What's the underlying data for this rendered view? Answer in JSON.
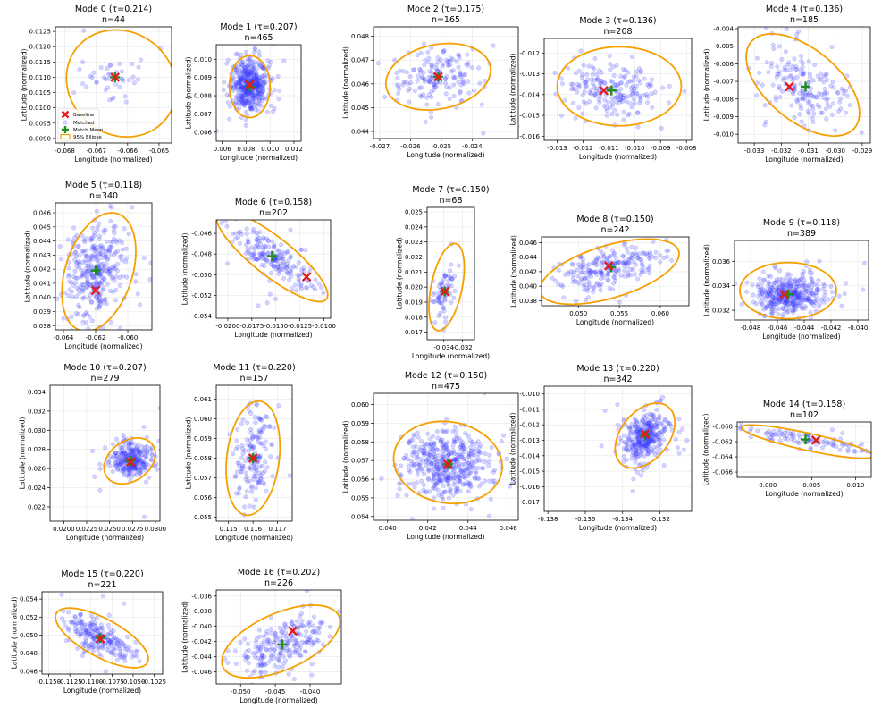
{
  "chart_data": [
    {
      "type": "scatter",
      "title": "Mode 0 (τ=0.214)",
      "subtitle": "n=44",
      "xlabel": "Longitude (normalized)",
      "ylabel": "Latitude (normalized)",
      "xlim": [
        -0.0683,
        -0.0646
      ],
      "ylim": [
        0.00885,
        0.01265
      ],
      "xticks": [
        "-0.068",
        "-0.067",
        "-0.066",
        "-0.065"
      ],
      "xtick_vals": [
        -0.068,
        -0.067,
        -0.066,
        -0.065
      ],
      "yticks": [
        "0.0090",
        "0.0095",
        "0.0100",
        "0.0105",
        "0.0110",
        "0.0115",
        "0.0120",
        "0.0125"
      ],
      "ytick_vals": [
        0.009,
        0.0095,
        0.01,
        0.0105,
        0.011,
        0.0115,
        0.012,
        0.0125
      ],
      "n": 44,
      "spread": [
        0.0005,
        0.0004
      ],
      "corr": 0,
      "baseline": [
        -0.0664,
        0.011
      ],
      "match_mean": [
        -0.0664,
        0.011
      ],
      "ellipse": {
        "center": [
          -0.0662,
          0.0108
        ],
        "semi_x": 0.00175,
        "semi_y": 0.00175,
        "corr": -0.1
      },
      "legend": {
        "placement": "lower-left",
        "entries": [
          "Baseline",
          "Matched",
          "Match Mean",
          "95% Ellipse"
        ]
      }
    },
    {
      "type": "scatter",
      "title": "Mode 1 (τ=0.207)",
      "subtitle": "n=465",
      "xlabel": "Longitude (normalized)",
      "ylabel": "Latitude (normalized)",
      "xlim": [
        0.0055,
        0.0126
      ],
      "ylim": [
        0.0055,
        0.0108
      ],
      "xticks": [
        "0.006",
        "0.008",
        "0.010",
        "0.012"
      ],
      "xtick_vals": [
        0.006,
        0.008,
        0.01,
        0.012
      ],
      "yticks": [
        "0.006",
        "0.007",
        "0.008",
        "0.009",
        "0.010"
      ],
      "ytick_vals": [
        0.006,
        0.007,
        0.008,
        0.009,
        0.01
      ],
      "n": 465,
      "spread": [
        0.00075,
        0.0007
      ],
      "corr": 0,
      "baseline": [
        0.0083,
        0.0086
      ],
      "match_mean": [
        0.0083,
        0.0085
      ],
      "ellipse": {
        "center": [
          0.0083,
          0.0085
        ],
        "semi_x": 0.0017,
        "semi_y": 0.0017,
        "corr": 0
      }
    },
    {
      "type": "scatter",
      "title": "Mode 2 (τ=0.175)",
      "subtitle": "n=165",
      "xlabel": "Longitude (normalized)",
      "ylabel": "Latitude (normalized)",
      "xlim": [
        -0.0272,
        -0.0225
      ],
      "ylim": [
        0.0437,
        0.0484
      ],
      "xticks": [
        "-0.027",
        "-0.026",
        "-0.025",
        "-0.024"
      ],
      "xtick_vals": [
        -0.027,
        -0.026,
        -0.025,
        -0.024
      ],
      "yticks": [
        "0.044",
        "0.045",
        "0.046",
        "0.047",
        "0.048"
      ],
      "ytick_vals": [
        0.044,
        0.045,
        0.046,
        0.047,
        0.048
      ],
      "n": 165,
      "spread": [
        0.0007,
        0.0006
      ],
      "corr": 0.1,
      "baseline": [
        -0.0251,
        0.0463
      ],
      "match_mean": [
        -0.0251,
        0.0463
      ],
      "ellipse": {
        "center": [
          -0.0251,
          0.0463
        ],
        "semi_x": 0.0017,
        "semi_y": 0.0014,
        "corr": 0.2
      }
    },
    {
      "type": "scatter",
      "title": "Mode 3 (τ=0.136)",
      "subtitle": "n=208",
      "xlabel": "Longitude (normalized)",
      "ylabel": "Latitude (normalized)",
      "xlim": [
        -0.0135,
        -0.0078
      ],
      "ylim": [
        -0.0162,
        -0.0113
      ],
      "xticks": [
        "-0.013",
        "-0.012",
        "-0.011",
        "-0.010",
        "-0.009",
        "-0.008"
      ],
      "xtick_vals": [
        -0.013,
        -0.012,
        -0.011,
        -0.01,
        -0.009,
        -0.008
      ],
      "yticks": [
        "-0.016",
        "-0.015",
        "-0.014",
        "-0.013",
        "-0.012"
      ],
      "ytick_vals": [
        -0.016,
        -0.015,
        -0.014,
        -0.013,
        -0.012
      ],
      "n": 208,
      "spread": [
        0.0009,
        0.0007
      ],
      "corr": 0,
      "baseline": [
        -0.0112,
        -0.0138
      ],
      "match_mean": [
        -0.0109,
        -0.0138
      ],
      "ellipse": {
        "center": [
          -0.0106,
          -0.0136
        ],
        "semi_x": 0.0024,
        "semi_y": 0.0019,
        "corr": 0
      }
    },
    {
      "type": "scatter",
      "title": "Mode 4 (τ=0.136)",
      "subtitle": "n=185",
      "xlabel": "Longitude (normalized)",
      "ylabel": "Latitude (normalized)",
      "xlim": [
        -0.0336,
        -0.0287
      ],
      "ylim": [
        -0.0105,
        -0.0039
      ],
      "xticks": [
        "-0.033",
        "-0.032",
        "-0.031",
        "-0.030",
        "-0.029"
      ],
      "xtick_vals": [
        -0.033,
        -0.032,
        -0.031,
        -0.03,
        -0.029
      ],
      "yticks": [
        "-0.010",
        "-0.009",
        "-0.008",
        "-0.007",
        "-0.006",
        "-0.005",
        "-0.004"
      ],
      "ytick_vals": [
        -0.01,
        -0.009,
        -0.008,
        -0.007,
        -0.006,
        -0.005,
        -0.004
      ],
      "n": 185,
      "spread": [
        0.0008,
        0.0011
      ],
      "corr": -0.55,
      "baseline": [
        -0.0317,
        -0.0073
      ],
      "match_mean": [
        -0.0311,
        -0.0073
      ],
      "ellipse": {
        "center": [
          -0.0312,
          -0.0072
        ],
        "semi_x": 0.0021,
        "semi_y": 0.0029,
        "corr": -0.55
      }
    },
    {
      "type": "scatter",
      "title": "Mode 5 (τ=0.118)",
      "subtitle": "n=340",
      "xlabel": "Longitude (normalized)",
      "ylabel": "Latitude (normalized)",
      "xlim": [
        -0.0645,
        -0.0585
      ],
      "ylim": [
        0.0377,
        0.0467
      ],
      "xticks": [
        "-0.064",
        "-0.062",
        "-0.060"
      ],
      "xtick_vals": [
        -0.064,
        -0.062,
        -0.06
      ],
      "yticks": [
        "0.038",
        "0.039",
        "0.040",
        "0.041",
        "0.042",
        "0.043",
        "0.044",
        "0.045",
        "0.046"
      ],
      "ytick_vals": [
        0.038,
        0.039,
        0.04,
        0.041,
        0.042,
        0.043,
        0.044,
        0.045,
        0.046
      ],
      "n": 340,
      "spread": [
        0.0009,
        0.0017
      ],
      "corr": 0.3,
      "baseline": [
        -0.062,
        0.0405
      ],
      "match_mean": [
        -0.062,
        0.0419
      ],
      "ellipse": {
        "center": [
          -0.0618,
          0.0418
        ],
        "semi_x": 0.0023,
        "semi_y": 0.0042,
        "corr": 0.35
      }
    },
    {
      "type": "scatter",
      "title": "Mode 6 (τ=0.158)",
      "subtitle": "n=202",
      "xlabel": "Longitude (normalized)",
      "ylabel": "Latitude (normalized)",
      "xlim": [
        -0.0212,
        -0.0093
      ],
      "ylim": [
        -0.0542,
        -0.0447
      ],
      "xticks": [
        "-0.0200",
        "-0.0175",
        "-0.0150",
        "-0.0125",
        "-0.0100"
      ],
      "xtick_vals": [
        -0.02,
        -0.0175,
        -0.015,
        -0.0125,
        -0.01
      ],
      "yticks": [
        "-0.054",
        "-0.052",
        "-0.050",
        "-0.048",
        "-0.046"
      ],
      "ytick_vals": [
        -0.054,
        -0.052,
        -0.05,
        -0.048,
        -0.046
      ],
      "n": 202,
      "spread": [
        0.0022,
        0.0016
      ],
      "corr": -0.8,
      "baseline": [
        -0.0118,
        -0.0502
      ],
      "match_mean": [
        -0.0154,
        -0.0482
      ],
      "ellipse": {
        "center": [
          -0.0154,
          -0.0482
        ],
        "semi_x": 0.0058,
        "semi_y": 0.0044,
        "corr": -0.85
      }
    },
    {
      "type": "scatter",
      "title": "Mode 7 (τ=0.150)",
      "subtitle": "n=68",
      "xlabel": "Longitude (normalized)",
      "ylabel": "Latitude (normalized)",
      "xlim": [
        -0.0358,
        -0.0307
      ],
      "ylim": [
        0.0165,
        0.0253
      ],
      "xticks": [
        "-0.034",
        "-0.032"
      ],
      "xtick_vals": [
        -0.034,
        -0.032
      ],
      "yticks": [
        "0.017",
        "0.018",
        "0.019",
        "0.020",
        "0.021",
        "0.022",
        "0.023",
        "0.024",
        "0.025"
      ],
      "ytick_vals": [
        0.017,
        0.018,
        0.019,
        0.02,
        0.021,
        0.022,
        0.023,
        0.024,
        0.025
      ],
      "n": 68,
      "spread": [
        0.0006,
        0.0009
      ],
      "corr": 0.4,
      "baseline": [
        -0.0339,
        0.0197
      ],
      "match_mean": [
        -0.0339,
        0.0197
      ],
      "ellipse": {
        "center": [
          -0.0337,
          0.02
        ],
        "semi_x": 0.0019,
        "semi_y": 0.0029,
        "corr": 0.45
      }
    },
    {
      "type": "scatter",
      "title": "Mode 8 (τ=0.150)",
      "subtitle": "n=242",
      "xlabel": "Longitude (normalized)",
      "ylabel": "Latitude (normalized)",
      "xlim": [
        0.0455,
        0.0635
      ],
      "ylim": [
        0.0373,
        0.0468
      ],
      "xticks": [
        "0.050",
        "0.055",
        "0.060"
      ],
      "xtick_vals": [
        0.05,
        0.055,
        0.06
      ],
      "yticks": [
        "0.038",
        "0.040",
        "0.042",
        "0.044",
        "0.046"
      ],
      "ytick_vals": [
        0.038,
        0.04,
        0.042,
        0.044,
        0.046
      ],
      "n": 242,
      "spread": [
        0.0035,
        0.0017
      ],
      "corr": 0.55,
      "baseline": [
        0.0537,
        0.0428
      ],
      "match_mean": [
        0.054,
        0.0426
      ],
      "ellipse": {
        "center": [
          0.0538,
          0.042
        ],
        "semi_x": 0.0085,
        "semi_y": 0.0045,
        "corr": 0.55
      }
    },
    {
      "type": "scatter",
      "title": "Mode 9 (τ=0.118)",
      "subtitle": "n=389",
      "xlabel": "Longitude (normalized)",
      "ylabel": "Latitude (normalized)",
      "xlim": [
        -0.0492,
        -0.0392
      ],
      "ylim": [
        0.0312,
        0.0377
      ],
      "xticks": [
        "-0.048",
        "-0.046",
        "-0.044",
        "-0.042",
        "-0.040"
      ],
      "xtick_vals": [
        -0.048,
        -0.046,
        -0.044,
        -0.042,
        -0.04
      ],
      "yticks": [
        "0.032",
        "0.034",
        "0.036"
      ],
      "ytick_vals": [
        0.032,
        0.034,
        0.036
      ],
      "n": 389,
      "spread": [
        0.0013,
        0.00075
      ],
      "corr": 0,
      "baseline": [
        -0.0455,
        0.0333
      ],
      "match_mean": [
        -0.0452,
        0.0333
      ],
      "ellipse": {
        "center": [
          -0.0452,
          0.0336
        ],
        "semi_x": 0.0036,
        "semi_y": 0.0023,
        "corr": 0
      }
    },
    {
      "type": "scatter",
      "title": "Mode 10 (τ=0.207)",
      "subtitle": "n=279",
      "xlabel": "Longitude (normalized)",
      "ylabel": "Latitude (normalized)",
      "xlim": [
        0.0185,
        0.0305
      ],
      "ylim": [
        0.0205,
        0.0347
      ],
      "xticks": [
        "0.0200",
        "0.0225",
        "0.0250",
        "0.0275",
        "0.0300"
      ],
      "xtick_vals": [
        0.02,
        0.0225,
        0.025,
        0.0275,
        0.03
      ],
      "yticks": [
        "0.022",
        "0.024",
        "0.026",
        "0.028",
        "0.030",
        "0.032",
        "0.034"
      ],
      "ytick_vals": [
        0.022,
        0.024,
        0.026,
        0.028,
        0.03,
        0.032,
        0.034
      ],
      "n": 279,
      "spread": [
        0.0012,
        0.0009
      ],
      "corr": 0,
      "baseline": [
        0.0273,
        0.0267
      ],
      "match_mean": [
        0.0273,
        0.0268
      ],
      "ellipse": {
        "center": [
          0.0272,
          0.0268
        ],
        "semi_x": 0.0028,
        "semi_y": 0.0024,
        "corr": 0.3
      }
    },
    {
      "type": "scatter",
      "title": "Mode 11 (τ=0.220)",
      "subtitle": "n=157",
      "xlabel": "Longitude (normalized)",
      "ylabel": "Latitude (normalized)",
      "xlim": [
        0.1145,
        0.1176
      ],
      "ylim": [
        0.0548,
        0.0617
      ],
      "xticks": [
        "0.115",
        "0.116",
        "0.117"
      ],
      "xtick_vals": [
        0.115,
        0.116,
        0.117
      ],
      "yticks": [
        "0.055",
        "0.056",
        "0.057",
        "0.058",
        "0.059",
        "0.060",
        "0.061"
      ],
      "ytick_vals": [
        0.055,
        0.056,
        0.057,
        0.058,
        0.059,
        0.06,
        0.061
      ],
      "n": 157,
      "spread": [
        0.0004,
        0.0011
      ],
      "corr": 0.1,
      "baseline": [
        0.116,
        0.058
      ],
      "match_mean": [
        0.116,
        0.058
      ],
      "ellipse": {
        "center": [
          0.116,
          0.058
        ],
        "semi_x": 0.0011,
        "semi_y": 0.0029,
        "corr": 0.2
      }
    },
    {
      "type": "scatter",
      "title": "Mode 12 (τ=0.150)",
      "subtitle": "n=475",
      "xlabel": "Longitude (normalized)",
      "ylabel": "Latitude (normalized)",
      "xlim": [
        0.0393,
        0.0465
      ],
      "ylim": [
        0.0538,
        0.0606
      ],
      "xticks": [
        "0.040",
        "0.042",
        "0.044",
        "0.046"
      ],
      "xtick_vals": [
        0.04,
        0.042,
        0.044,
        0.046
      ],
      "yticks": [
        "0.054",
        "0.055",
        "0.056",
        "0.057",
        "0.058",
        "0.059",
        "0.060"
      ],
      "ytick_vals": [
        0.054,
        0.055,
        0.056,
        0.057,
        0.058,
        0.059,
        0.06
      ],
      "n": 475,
      "spread": [
        0.0011,
        0.0009
      ],
      "corr": -0.1,
      "baseline": [
        0.043,
        0.0568
      ],
      "match_mean": [
        0.043,
        0.0568
      ],
      "ellipse": {
        "center": [
          0.043,
          0.0569
        ],
        "semi_x": 0.0027,
        "semi_y": 0.0022,
        "corr": -0.1
      }
    },
    {
      "type": "scatter",
      "title": "Mode 13 (τ=0.220)",
      "subtitle": "n=342",
      "xlabel": "Longitude (normalized)",
      "ylabel": "Latitude (normalized)",
      "xlim": [
        -0.1382,
        -0.1303
      ],
      "ylim": [
        -0.0176,
        -0.0095
      ],
      "xticks": [
        "-0.138",
        "-0.136",
        "-0.134",
        "-0.132"
      ],
      "xtick_vals": [
        -0.138,
        -0.136,
        -0.134,
        -0.132
      ],
      "yticks": [
        "-0.017",
        "-0.016",
        "-0.015",
        "-0.014",
        "-0.013",
        "-0.012",
        "-0.011",
        "-0.010"
      ],
      "ytick_vals": [
        -0.017,
        -0.016,
        -0.015,
        -0.014,
        -0.013,
        -0.012,
        -0.011,
        -0.01
      ],
      "n": 342,
      "spread": [
        0.0006,
        0.0008
      ],
      "corr": 0.35,
      "baseline": [
        -0.1328,
        -0.0126
      ],
      "match_mean": [
        -0.1328,
        -0.0127
      ],
      "ellipse": {
        "center": [
          -0.1328,
          -0.0127
        ],
        "semi_x": 0.0016,
        "semi_y": 0.0021,
        "corr": 0.4
      }
    },
    {
      "type": "scatter",
      "title": "Mode 14 (τ=0.158)",
      "subtitle": "n=102",
      "xlabel": "Longitude (normalized)",
      "ylabel": "Latitude (normalized)",
      "xlim": [
        -0.0035,
        0.0118
      ],
      "ylim": [
        -0.0667,
        -0.0594
      ],
      "xticks": [
        "0.000",
        "0.005",
        "0.010"
      ],
      "xtick_vals": [
        0,
        0.005,
        0.01
      ],
      "yticks": [
        "-0.066",
        "-0.064",
        "-0.062",
        "-0.060"
      ],
      "ytick_vals": [
        -0.066,
        -0.064,
        -0.062,
        -0.06
      ],
      "n": 102,
      "spread": [
        0.0035,
        0.0008
      ],
      "corr": -0.8,
      "baseline": [
        0.0055,
        -0.0618
      ],
      "match_mean": [
        0.0043,
        -0.0617
      ],
      "ellipse": {
        "center": [
          0.0045,
          -0.062
        ],
        "semi_x": 0.0075,
        "semi_y": 0.0022,
        "corr": -0.85
      }
    },
    {
      "type": "scatter",
      "title": "Mode 15 (τ=0.220)",
      "subtitle": "n=221",
      "xlabel": "Longitude (normalized)",
      "ylabel": "Latitude (normalized)",
      "xlim": [
        -0.1158,
        -0.1015
      ],
      "ylim": [
        0.0457,
        0.0548
      ],
      "xticks": [
        "-0.1150",
        "-0.1125",
        "-0.1100",
        "-0.1075",
        "-0.1050",
        "-0.1025"
      ],
      "xtick_vals": [
        -0.115,
        -0.1125,
        -0.11,
        -0.1075,
        -0.105,
        -0.1025
      ],
      "yticks": [
        "0.046",
        "0.048",
        "0.050",
        "0.052",
        "0.054"
      ],
      "ytick_vals": [
        0.046,
        0.048,
        0.05,
        0.052,
        0.054
      ],
      "n": 221,
      "spread": [
        0.0022,
        0.0013
      ],
      "corr": -0.7,
      "baseline": [
        -0.1089,
        0.0496
      ],
      "match_mean": [
        -0.1089,
        0.0497
      ],
      "ellipse": {
        "center": [
          -0.1087,
          0.0497
        ],
        "semi_x": 0.0055,
        "semi_y": 0.0033,
        "corr": -0.7
      }
    },
    {
      "type": "scatter",
      "title": "Mode 16 (τ=0.202)",
      "subtitle": "n=226",
      "xlabel": "Longitude (normalized)",
      "ylabel": "Latitude (normalized)",
      "xlim": [
        -0.0535,
        -0.0355
      ],
      "ylim": [
        -0.0476,
        -0.0352
      ],
      "xticks": [
        "-0.050",
        "-0.045",
        "-0.040"
      ],
      "xtick_vals": [
        -0.05,
        -0.045,
        -0.04
      ],
      "yticks": [
        "-0.046",
        "-0.044",
        "-0.042",
        "-0.040",
        "-0.038",
        "-0.036"
      ],
      "ytick_vals": [
        -0.046,
        -0.044,
        -0.042,
        -0.04,
        -0.038,
        -0.036
      ],
      "n": 226,
      "spread": [
        0.0033,
        0.002
      ],
      "corr": 0.6,
      "baseline": [
        -0.0425,
        -0.0406
      ],
      "match_mean": [
        -0.044,
        -0.0424
      ],
      "ellipse": {
        "center": [
          -0.0442,
          -0.042
        ],
        "semi_x": 0.0085,
        "semi_y": 0.0048,
        "corr": 0.55
      }
    }
  ],
  "colors": {
    "baseline": "#e41a1c",
    "matched": "#3a3aff",
    "match_mean": "#1e8c1e",
    "ellipse": "#f5a000",
    "grid": "#e6e6e6"
  }
}
